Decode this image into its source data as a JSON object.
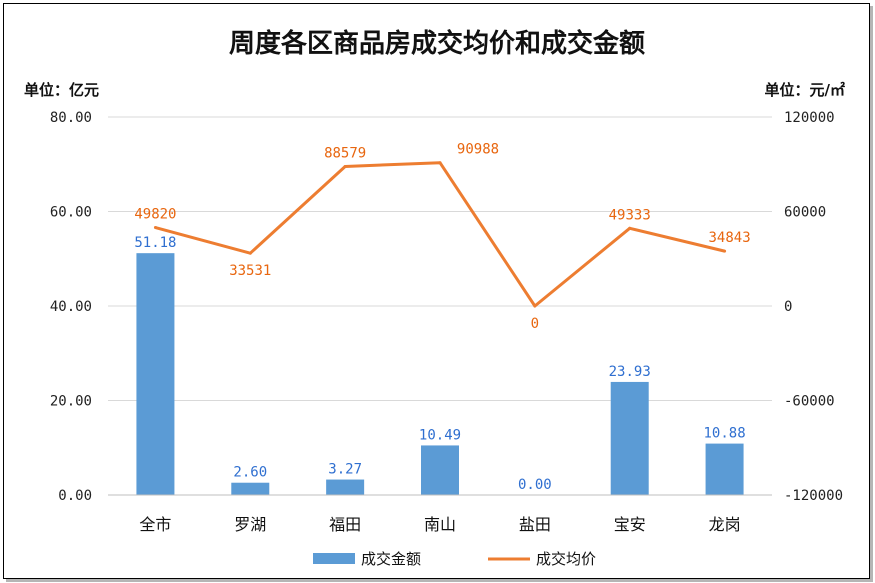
{
  "chart_data": {
    "type": "bar",
    "title": "周度各区商品房成交均价和成交金额",
    "ylabel_left": "单位：亿元",
    "ylabel_right": "单位：元/㎡",
    "categories": [
      "全市",
      "罗湖",
      "福田",
      "南山",
      "盐田",
      "宝安",
      "龙岗"
    ],
    "ylim_left": [
      0,
      80
    ],
    "yticks_left": [
      "0.00",
      "20.00",
      "40.00",
      "60.00",
      "80.00"
    ],
    "ylim_right": [
      -120000,
      120000
    ],
    "yticks_right": [
      "-120000",
      "-60000",
      "0",
      "60000",
      "120000"
    ],
    "grid": true,
    "legend_position": "bottom",
    "series": [
      {
        "name": "成交金额",
        "type": "bar",
        "axis": "left",
        "color": "#5b9bd5",
        "values": [
          51.18,
          2.6,
          3.27,
          10.49,
          0.0,
          23.93,
          10.88
        ],
        "labels": [
          "51.18",
          "2.60",
          "3.27",
          "10.49",
          "0.00",
          "23.93",
          "10.88"
        ]
      },
      {
        "name": "成交均价",
        "type": "line",
        "axis": "right",
        "color": "#ed7d31",
        "values": [
          49820,
          33531,
          88579,
          90988,
          0,
          49333,
          34843
        ],
        "labels": [
          "49820",
          "33531",
          "88579",
          "90988",
          "0",
          "49333",
          "34843"
        ]
      }
    ]
  }
}
